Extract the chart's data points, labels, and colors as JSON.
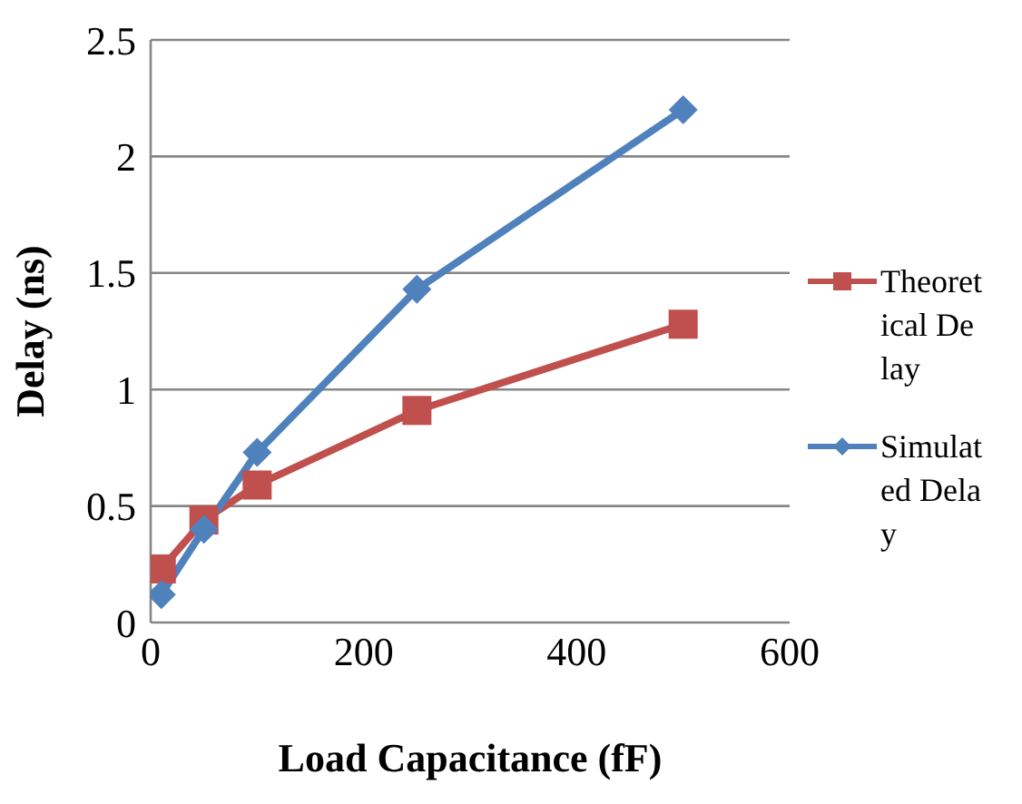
{
  "chart_data": {
    "type": "line",
    "xlabel": "Load Capacitance (fF)",
    "ylabel": "Delay (ns)",
    "xlim": [
      0,
      600
    ],
    "xticks": [
      0,
      200,
      400,
      600
    ],
    "ylim": [
      0,
      2.5
    ],
    "yticks": [
      0,
      0.5,
      1,
      1.5,
      2,
      2.5
    ],
    "grid": "y",
    "legend": "right",
    "series": [
      {
        "name": "Theoretical Delay",
        "color": "#c0504d",
        "marker": "square",
        "x": [
          10,
          50,
          100,
          250,
          500
        ],
        "values": [
          0.23,
          0.44,
          0.59,
          0.91,
          1.28
        ]
      },
      {
        "name": "Simulated Delay",
        "color": "#4f81bd",
        "marker": "diamond",
        "x": [
          10,
          50,
          100,
          250,
          500
        ],
        "values": [
          0.12,
          0.4,
          0.73,
          1.43,
          2.2
        ]
      }
    ]
  }
}
